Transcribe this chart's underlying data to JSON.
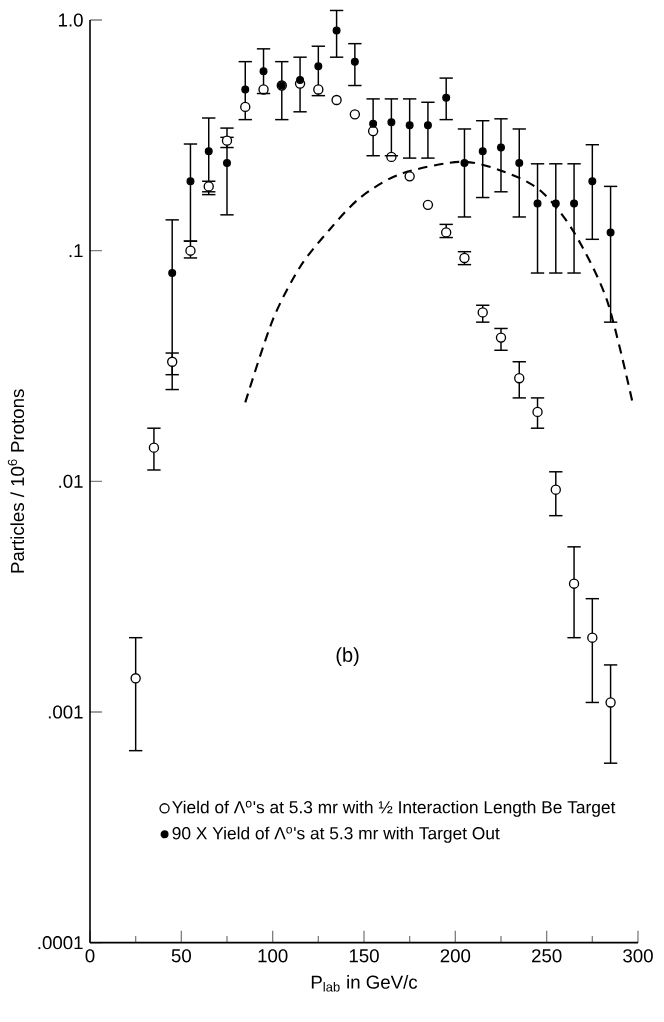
{
  "chart_data": {
    "type": "scatter",
    "xlabel": "P$_{lab}$ in GeV/c",
    "ylabel": "Particles / 10$^{6}$ Protons",
    "annotations": [
      "(b)"
    ],
    "log": true,
    "legend": "bottom left",
    "xlim": [
      0,
      300
    ],
    "xticks": [
      0,
      50,
      100,
      150,
      200,
      250,
      300
    ],
    "ylim": [
      0.0001,
      1.0
    ],
    "yticks": [
      {
        "value": 0.0001,
        "label": ".0001"
      },
      {
        "value": 0.001,
        "label": ".001"
      },
      {
        "value": 0.01,
        "label": ".01"
      },
      {
        "value": 0.1,
        "label": ".1"
      },
      {
        "value": 1.0,
        "label": "1.0"
      }
    ],
    "series": [
      {
        "name": "Yield of Λ$^{o}$'s at 5.3 mr with ½ Interaction Length Be Target",
        "marker": "circle",
        "color": "#000000",
        "x": [
          25,
          35,
          45,
          55,
          65,
          75,
          85,
          95,
          105,
          115,
          125,
          135,
          145,
          155,
          165,
          175,
          185,
          195,
          205,
          215,
          225,
          235,
          245,
          255,
          265,
          275,
          285
        ],
        "values": [
          0.0014,
          0.014,
          0.033,
          0.1,
          0.19,
          0.3,
          0.42,
          0.5,
          0.52,
          0.53,
          0.5,
          0.45,
          0.39,
          0.33,
          0.255,
          0.21,
          0.158,
          0.12,
          0.093,
          0.054,
          0.042,
          0.028,
          0.02,
          0.0092,
          0.0036,
          0.0021,
          0.0011
        ],
        "errors": [
          [
            0.00068,
            0.0021
          ],
          [
            0.0112,
            0.017
          ],
          [
            0.029,
            0.036
          ],
          [
            0.093,
            0.11
          ],
          [
            0.18,
            0.2
          ],
          [
            0.28,
            0.31
          ],
          null,
          null,
          null,
          null,
          null,
          null,
          null,
          null,
          null,
          null,
          null,
          [
            0.114,
            0.13
          ],
          [
            0.087,
            0.099
          ],
          [
            0.049,
            0.058
          ],
          [
            0.037,
            0.046
          ],
          [
            0.023,
            0.033
          ],
          [
            0.017,
            0.023
          ],
          [
            0.0071,
            0.011
          ],
          [
            0.0021,
            0.0052
          ],
          [
            0.0011,
            0.0031
          ],
          [
            0.0006,
            0.0016
          ]
        ]
      },
      {
        "name": "90 X Yield of Λ$^{o}$'s at 5.3 mr with Target Out",
        "marker": "circle",
        "color": "#000000",
        "x": [
          45,
          55,
          65,
          75,
          85,
          95,
          105,
          115,
          125,
          135,
          145,
          155,
          165,
          175,
          185,
          195,
          205,
          215,
          225,
          235,
          245,
          255,
          265,
          275,
          285
        ],
        "values": [
          0.08,
          0.2,
          0.27,
          0.24,
          0.5,
          0.6,
          0.52,
          0.55,
          0.63,
          0.9,
          0.66,
          0.355,
          0.36,
          0.35,
          0.35,
          0.46,
          0.24,
          0.27,
          0.28,
          0.24,
          0.16,
          0.16,
          0.16,
          0.2,
          0.12
        ],
        "errors": [
          [
            0.025,
            0.136
          ],
          [
            0.11,
            0.29
          ],
          [
            0.175,
            0.376
          ],
          [
            0.143,
            0.34
          ],
          [
            0.37,
            0.66
          ],
          [
            0.48,
            0.75
          ],
          [
            0.37,
            0.66
          ],
          [
            0.4,
            0.69
          ],
          [
            0.47,
            0.77
          ],
          [
            0.69,
            1.1
          ],
          [
            0.52,
            0.79
          ],
          [
            0.258,
            0.455
          ],
          [
            0.258,
            0.455
          ],
          [
            0.252,
            0.455
          ],
          [
            0.252,
            0.44
          ],
          [
            0.37,
            0.56
          ],
          [
            0.14,
            0.337
          ],
          [
            0.17,
            0.366
          ],
          [
            0.18,
            0.373
          ],
          [
            0.14,
            0.337
          ],
          [
            0.08,
            0.238
          ],
          [
            0.08,
            0.238
          ],
          [
            0.08,
            0.238
          ],
          [
            0.112,
            0.288
          ],
          [
            0.049,
            0.19
          ]
        ]
      },
      {
        "type": "line",
        "line_style": "dashed",
        "marker": "none",
        "color": "#000000",
        "x": [
          85,
          100,
          115,
          131,
          148,
          170,
          204,
          230,
          248,
          265,
          283,
          297
        ],
        "values": [
          0.022,
          0.05,
          0.085,
          0.123,
          0.17,
          0.215,
          0.243,
          0.215,
          0.178,
          0.12,
          0.061,
          0.022
        ]
      }
    ]
  }
}
